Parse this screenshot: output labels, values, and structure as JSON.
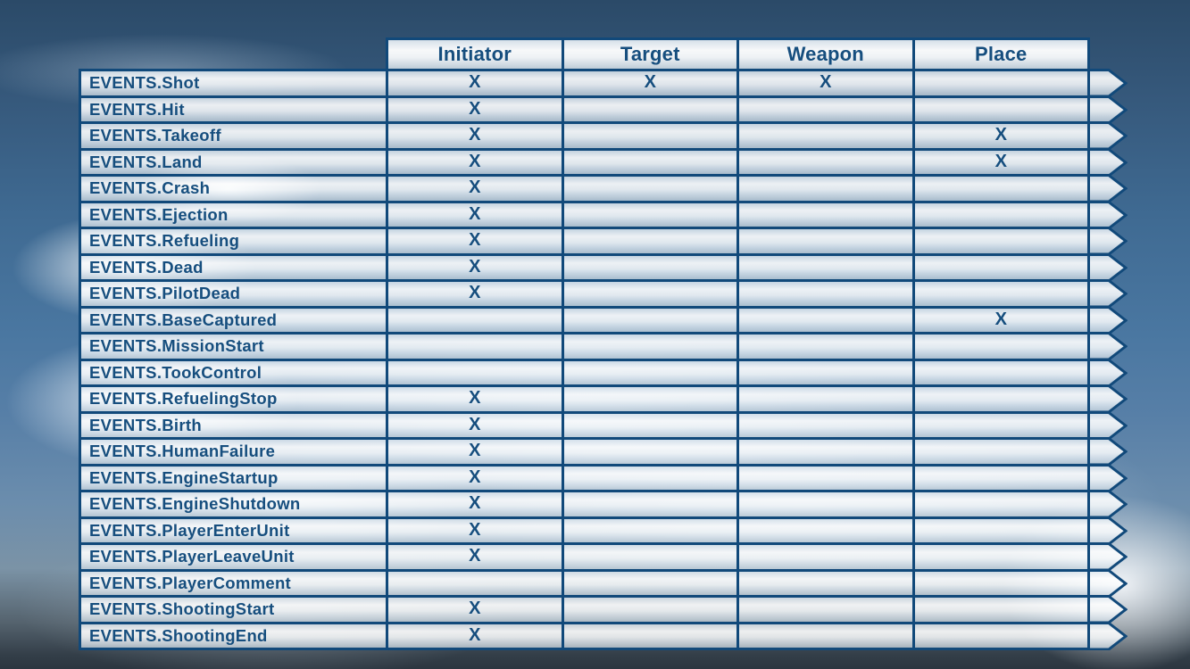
{
  "table": {
    "columns": [
      "Initiator",
      "Target",
      "Weapon",
      "Place"
    ],
    "mark": "X",
    "rows": [
      {
        "label": "EVENTS.Shot",
        "cells": [
          "X",
          "X",
          "X",
          ""
        ]
      },
      {
        "label": "EVENTS.Hit",
        "cells": [
          "X",
          "",
          "",
          ""
        ]
      },
      {
        "label": "EVENTS.Takeoff",
        "cells": [
          "X",
          "",
          "",
          "X"
        ]
      },
      {
        "label": "EVENTS.Land",
        "cells": [
          "X",
          "",
          "",
          "X"
        ]
      },
      {
        "label": "EVENTS.Crash",
        "cells": [
          "X",
          "",
          "",
          ""
        ]
      },
      {
        "label": "EVENTS.Ejection",
        "cells": [
          "X",
          "",
          "",
          ""
        ]
      },
      {
        "label": "EVENTS.Refueling",
        "cells": [
          "X",
          "",
          "",
          ""
        ]
      },
      {
        "label": "EVENTS.Dead",
        "cells": [
          "X",
          "",
          "",
          ""
        ]
      },
      {
        "label": "EVENTS.PilotDead",
        "cells": [
          "X",
          "",
          "",
          ""
        ]
      },
      {
        "label": "EVENTS.BaseCaptured",
        "cells": [
          "",
          "",
          "",
          "X"
        ]
      },
      {
        "label": "EVENTS.MissionStart",
        "cells": [
          "",
          "",
          "",
          ""
        ]
      },
      {
        "label": "EVENTS.TookControl",
        "cells": [
          "",
          "",
          "",
          ""
        ]
      },
      {
        "label": "EVENTS.RefuelingStop",
        "cells": [
          "X",
          "",
          "",
          ""
        ]
      },
      {
        "label": "EVENTS.Birth",
        "cells": [
          "X",
          "",
          "",
          ""
        ]
      },
      {
        "label": "EVENTS.HumanFailure",
        "cells": [
          "X",
          "",
          "",
          ""
        ]
      },
      {
        "label": "EVENTS.EngineStartup",
        "cells": [
          "X",
          "",
          "",
          ""
        ]
      },
      {
        "label": "EVENTS.EngineShutdown",
        "cells": [
          "X",
          "",
          "",
          ""
        ]
      },
      {
        "label": "EVENTS.PlayerEnterUnit",
        "cells": [
          "X",
          "",
          "",
          ""
        ]
      },
      {
        "label": "EVENTS.PlayerLeaveUnit",
        "cells": [
          "X",
          "",
          "",
          ""
        ]
      },
      {
        "label": "EVENTS.PlayerComment",
        "cells": [
          "",
          "",
          "",
          ""
        ]
      },
      {
        "label": "EVENTS.ShootingStart",
        "cells": [
          "X",
          "",
          "",
          ""
        ]
      },
      {
        "label": "EVENTS.ShootingEnd",
        "cells": [
          "X",
          "",
          "",
          ""
        ]
      }
    ],
    "colors": {
      "text_navy": "#164e7e",
      "border_navy": "#11497a",
      "sky_top": "#2b4a68",
      "sky_mid": "#4a77a1",
      "footer_dark": "#2c3640"
    }
  }
}
